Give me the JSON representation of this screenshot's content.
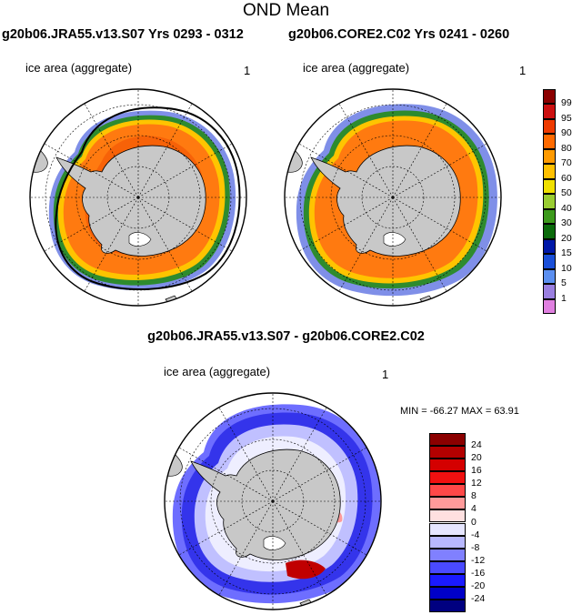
{
  "page": {
    "title": "OND Mean",
    "left_header": "g20b06.JRA55.v13.S07  Yrs 0293 - 0312",
    "right_header": "g20b06.CORE2.C02  Yrs 0241 - 0260",
    "diff_header": "g20b06.JRA55.v13.S07 - g20b06.CORE2.C02"
  },
  "panels": {
    "left": {
      "label": "ice area  (aggregate)",
      "number": "1"
    },
    "right": {
      "label": "ice area  (aggregate)",
      "number": "1"
    },
    "diff": {
      "label": "ice area  (aggregate)",
      "number": "1",
      "minmax": "MIN = -66.27 MAX =  63.91"
    }
  },
  "colorbar_top": {
    "labels": [
      "99",
      "95",
      "90",
      "80",
      "70",
      "60",
      "50",
      "40",
      "30",
      "20",
      "15",
      "10",
      "5",
      "1"
    ],
    "colors": [
      "#8b0000",
      "#cc1010",
      "#ee3a00",
      "#ff6a00",
      "#ff9a00",
      "#ffc000",
      "#f0e000",
      "#9acd32",
      "#3c9a1c",
      "#0a6a0a",
      "#0018a8",
      "#1a4fd8",
      "#5b8ff0",
      "#9a7fe0",
      "#e080e0"
    ]
  },
  "colorbar_diff": {
    "labels": [
      "24",
      "20",
      "16",
      "12",
      "8",
      "4",
      "0",
      "-4",
      "-8",
      "-12",
      "-16",
      "-20",
      "-24"
    ],
    "colors": [
      "#8b0000",
      "#b30000",
      "#d40000",
      "#f01010",
      "#ff4848",
      "#ff9a9a",
      "#ffe0e0",
      "#e6e6ff",
      "#b8b8ff",
      "#8080ff",
      "#4a4aff",
      "#1a1aff",
      "#0000c8",
      "#000080"
    ]
  }
}
